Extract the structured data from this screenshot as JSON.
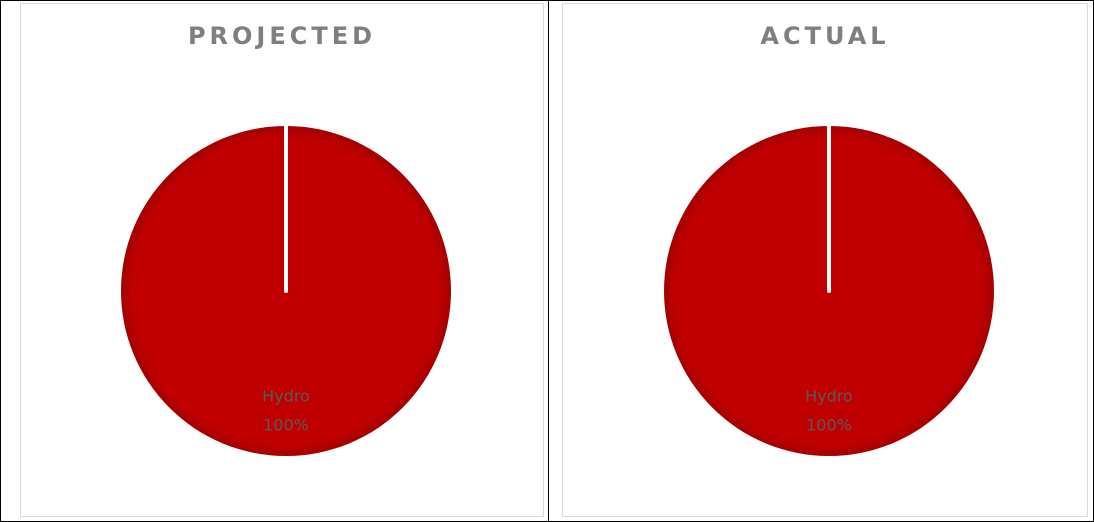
{
  "chart_data": [
    {
      "type": "pie",
      "title": "PROJECTED",
      "slices": [
        {
          "label": "Hydro",
          "value": 100,
          "percent_label": "100%",
          "color": "#c00000"
        }
      ]
    },
    {
      "type": "pie",
      "title": "ACTUAL",
      "slices": [
        {
          "label": "Hydro",
          "value": 100,
          "percent_label": "100%",
          "color": "#c00000"
        }
      ]
    }
  ]
}
